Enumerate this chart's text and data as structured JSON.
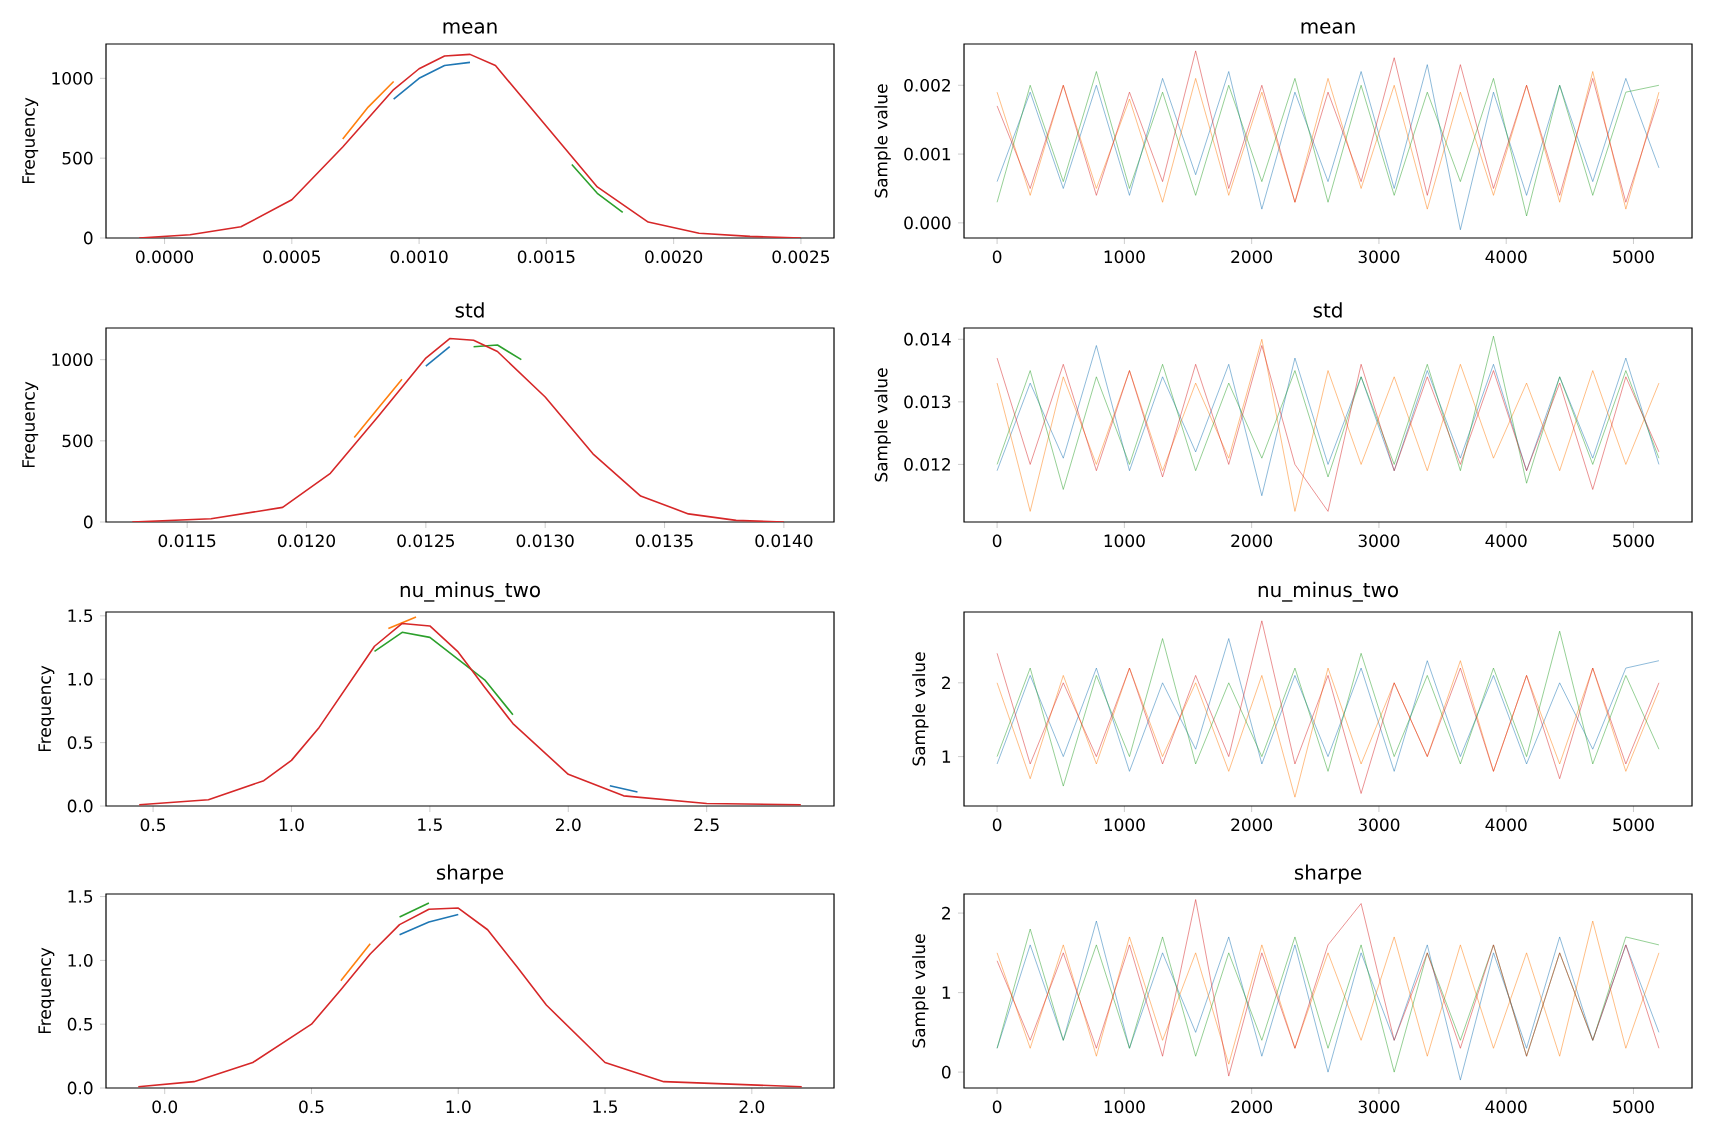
{
  "chart_data": [
    {
      "type": "line",
      "title": "mean",
      "ylabel": "Frequency",
      "xlim": [
        -0.00023,
        0.00263
      ],
      "ylim": [
        0,
        1215
      ],
      "xticks": [
        {
          "value": 0,
          "label": "0.0000"
        },
        {
          "value": 0.0005,
          "label": "0.0005"
        },
        {
          "value": 0.001,
          "label": "0.0010"
        },
        {
          "value": 0.0015,
          "label": "0.0015"
        },
        {
          "value": 0.002,
          "label": "0.0020"
        },
        {
          "value": 0.0025,
          "label": "0.0025"
        }
      ],
      "yticks": [
        0,
        500,
        1000
      ],
      "x": [
        -0.0001,
        0.0001,
        0.0003,
        0.0005,
        0.0007,
        0.0009,
        0.001,
        0.0011,
        0.0012,
        0.0013,
        0.0015,
        0.0017,
        0.0019,
        0.0021,
        0.0023,
        0.0025
      ],
      "series": [
        {
          "color": "#1f77b4",
          "x": [
            0.0009,
            0.001,
            0.0011,
            0.0012
          ],
          "values": [
            870,
            1000,
            1080,
            1100
          ]
        },
        {
          "color": "#ff7f0e",
          "x": [
            0.0007,
            0.0008,
            0.0009
          ],
          "values": [
            620,
            820,
            980
          ]
        },
        {
          "color": "#2ca02c",
          "x": [
            0.0016,
            0.0017,
            0.0018
          ],
          "values": [
            460,
            280,
            160
          ]
        },
        {
          "color": "#d62728",
          "values": [
            0,
            20,
            70,
            240,
            570,
            930,
            1060,
            1140,
            1150,
            1080,
            700,
            320,
            100,
            30,
            10,
            0
          ]
        }
      ]
    },
    {
      "type": "line",
      "title": "mean",
      "ylabel": "Sample value",
      "xlim": [
        -260,
        5460
      ],
      "ylim": [
        -0.00022,
        0.0026
      ],
      "xticks": [
        0,
        1000,
        2000,
        3000,
        4000,
        5000
      ],
      "yticks": [
        {
          "value": 0,
          "label": "0.000"
        },
        {
          "value": 0.001,
          "label": "0.001"
        },
        {
          "value": 0.002,
          "label": "0.002"
        }
      ],
      "x": [
        0,
        260,
        520,
        780,
        1040,
        1300,
        1560,
        1820,
        2080,
        2340,
        2600,
        2860,
        3120,
        3380,
        3640,
        3900,
        4160,
        4420,
        4680,
        4940,
        5200
      ],
      "series": [
        {
          "color": "#1f77b4",
          "values": [
            0.0006,
            0.0019,
            0.0005,
            0.002,
            0.0004,
            0.0021,
            0.0007,
            0.0022,
            0.0002,
            0.0019,
            0.0006,
            0.0022,
            0.0005,
            0.0023,
            -0.0001,
            0.0019,
            0.0004,
            0.002,
            0.0006,
            0.0021,
            0.0008
          ]
        },
        {
          "color": "#ff7f0e",
          "values": [
            0.0019,
            0.0004,
            0.002,
            0.0005,
            0.0018,
            0.0003,
            0.0021,
            0.0004,
            0.0019,
            0.0003,
            0.0021,
            0.0005,
            0.002,
            0.0002,
            0.0019,
            0.0004,
            0.002,
            0.0003,
            0.0022,
            0.0002,
            0.0019
          ]
        },
        {
          "color": "#2ca02c",
          "values": [
            0.0003,
            0.002,
            0.0006,
            0.0022,
            0.0005,
            0.0019,
            0.0004,
            0.002,
            0.0006,
            0.0021,
            0.0003,
            0.002,
            0.0004,
            0.0019,
            0.0006,
            0.0021,
            0.0001,
            0.002,
            0.0004,
            0.0019,
            0.002
          ]
        },
        {
          "color": "#d62728",
          "values": [
            0.0017,
            0.0005,
            0.002,
            0.0004,
            0.0019,
            0.0006,
            0.0025,
            0.0005,
            0.002,
            0.0003,
            0.0019,
            0.0006,
            0.0024,
            0.0004,
            0.0023,
            0.0005,
            0.002,
            0.0004,
            0.0021,
            0.0003,
            0.0018
          ]
        }
      ]
    },
    {
      "type": "line",
      "title": "std",
      "ylabel": "Frequency",
      "xlim": [
        0.01116,
        0.01421
      ],
      "ylim": [
        0,
        1195
      ],
      "xticks": [
        {
          "value": 0.0115,
          "label": "0.0115"
        },
        {
          "value": 0.012,
          "label": "0.0120"
        },
        {
          "value": 0.0125,
          "label": "0.0125"
        },
        {
          "value": 0.013,
          "label": "0.0130"
        },
        {
          "value": 0.0135,
          "label": "0.0135"
        },
        {
          "value": 0.014,
          "label": "0.0140"
        }
      ],
      "yticks": [
        0,
        500,
        1000
      ],
      "x": [
        0.01127,
        0.0116,
        0.0119,
        0.0121,
        0.0123,
        0.0125,
        0.0126,
        0.0127,
        0.0128,
        0.013,
        0.0132,
        0.0134,
        0.0136,
        0.0138,
        0.014
      ],
      "series": [
        {
          "color": "#1f77b4",
          "x": [
            0.0125,
            0.0126
          ],
          "values": [
            960,
            1080
          ]
        },
        {
          "color": "#ff7f0e",
          "x": [
            0.0122,
            0.0123,
            0.0124
          ],
          "values": [
            520,
            700,
            880
          ]
        },
        {
          "color": "#2ca02c",
          "x": [
            0.0127,
            0.0128,
            0.0129
          ],
          "values": [
            1080,
            1090,
            1000
          ]
        },
        {
          "color": "#d62728",
          "values": [
            0,
            20,
            90,
            300,
            650,
            1010,
            1130,
            1120,
            1050,
            770,
            420,
            160,
            50,
            10,
            0
          ]
        }
      ]
    },
    {
      "type": "line",
      "title": "std",
      "ylabel": "Sample value",
      "xlim": [
        -260,
        5460
      ],
      "ylim": [
        0.01108,
        0.01418
      ],
      "xticks": [
        0,
        1000,
        2000,
        3000,
        4000,
        5000
      ],
      "yticks": [
        0.012,
        0.013,
        0.014
      ],
      "x": [
        0,
        260,
        520,
        780,
        1040,
        1300,
        1560,
        1820,
        2080,
        2340,
        2600,
        2860,
        3120,
        3380,
        3640,
        3900,
        4160,
        4420,
        4680,
        4940,
        5200
      ],
      "series": [
        {
          "color": "#1f77b4",
          "values": [
            0.0119,
            0.0133,
            0.0121,
            0.0139,
            0.0119,
            0.0134,
            0.0122,
            0.0136,
            0.0115,
            0.0137,
            0.012,
            0.0134,
            0.0119,
            0.0135,
            0.0121,
            0.0136,
            0.0119,
            0.0134,
            0.0121,
            0.0137,
            0.012
          ]
        },
        {
          "color": "#ff7f0e",
          "values": [
            0.0133,
            0.01125,
            0.0134,
            0.012,
            0.0135,
            0.0119,
            0.0133,
            0.0121,
            0.014,
            0.01125,
            0.0135,
            0.012,
            0.0134,
            0.0119,
            0.0136,
            0.0121,
            0.0133,
            0.0119,
            0.0135,
            0.012,
            0.0133
          ]
        },
        {
          "color": "#2ca02c",
          "values": [
            0.012,
            0.0135,
            0.0116,
            0.0134,
            0.012,
            0.0136,
            0.0119,
            0.0133,
            0.0121,
            0.0135,
            0.0118,
            0.0134,
            0.012,
            0.0136,
            0.0119,
            0.01405,
            0.0117,
            0.0134,
            0.012,
            0.0135,
            0.0121
          ]
        },
        {
          "color": "#d62728",
          "values": [
            0.0137,
            0.012,
            0.0136,
            0.0119,
            0.0135,
            0.0118,
            0.0136,
            0.012,
            0.0139,
            0.012,
            0.01125,
            0.0136,
            0.0119,
            0.0134,
            0.012,
            0.0135,
            0.0119,
            0.0133,
            0.0116,
            0.0134,
            0.0122
          ]
        }
      ]
    },
    {
      "type": "line",
      "title": "nu_minus_two",
      "ylabel": "Frequency",
      "xlim": [
        0.33,
        2.96
      ],
      "ylim": [
        0,
        1.53
      ],
      "xticks": [
        0.5,
        {
          "value": 1,
          "label": "1.0"
        },
        1.5,
        {
          "value": 2,
          "label": "2.0"
        },
        2.5
      ],
      "yticks": [
        {
          "value": 0,
          "label": "0.0"
        },
        0.5,
        {
          "value": 1,
          "label": "1.0"
        },
        1.5
      ],
      "x": [
        0.45,
        0.7,
        0.9,
        1.0,
        1.1,
        1.2,
        1.3,
        1.4,
        1.5,
        1.6,
        1.7,
        1.8,
        2.0,
        2.2,
        2.5,
        2.84
      ],
      "series": [
        {
          "color": "#1f77b4",
          "x": [
            2.15,
            2.25
          ],
          "values": [
            0.16,
            0.11
          ]
        },
        {
          "color": "#ff7f0e",
          "x": [
            1.35,
            1.45
          ],
          "values": [
            1.4,
            1.49
          ]
        },
        {
          "color": "#2ca02c",
          "x": [
            1.3,
            1.4,
            1.5,
            1.7,
            1.8
          ],
          "values": [
            1.22,
            1.37,
            1.33,
            0.99,
            0.72
          ]
        },
        {
          "color": "#d62728",
          "values": [
            0.01,
            0.05,
            0.2,
            0.36,
            0.62,
            0.94,
            1.26,
            1.44,
            1.42,
            1.22,
            0.93,
            0.65,
            0.25,
            0.08,
            0.02,
            0.01
          ]
        }
      ]
    },
    {
      "type": "line",
      "title": "nu_minus_two",
      "ylabel": "Sample value",
      "xlim": [
        -260,
        5460
      ],
      "ylim": [
        0.33,
        2.96
      ],
      "xticks": [
        0,
        1000,
        2000,
        3000,
        4000,
        5000
      ],
      "yticks": [
        1,
        2
      ],
      "x": [
        0,
        260,
        520,
        780,
        1040,
        1300,
        1560,
        1820,
        2080,
        2340,
        2600,
        2860,
        3120,
        3380,
        3640,
        3900,
        4160,
        4420,
        4680,
        4940,
        5200
      ],
      "series": [
        {
          "color": "#1f77b4",
          "values": [
            0.9,
            2.1,
            1.0,
            2.2,
            0.8,
            2.0,
            1.1,
            2.6,
            0.9,
            2.1,
            1.0,
            2.2,
            0.8,
            2.3,
            1.0,
            2.1,
            0.9,
            2.0,
            1.1,
            2.2,
            2.3
          ]
        },
        {
          "color": "#ff7f0e",
          "values": [
            2.0,
            0.7,
            2.1,
            0.9,
            2.2,
            1.0,
            2.0,
            0.8,
            2.1,
            0.45,
            2.2,
            0.9,
            2.0,
            1.0,
            2.3,
            0.8,
            2.1,
            0.9,
            2.2,
            0.8,
            1.9
          ]
        },
        {
          "color": "#2ca02c",
          "values": [
            1.0,
            2.2,
            0.6,
            2.1,
            1.0,
            2.6,
            0.9,
            2.0,
            1.0,
            2.2,
            0.8,
            2.4,
            1.0,
            2.1,
            0.9,
            2.2,
            1.0,
            2.7,
            0.9,
            2.1,
            1.1
          ]
        },
        {
          "color": "#d62728",
          "values": [
            2.4,
            0.9,
            2.0,
            1.0,
            2.2,
            0.9,
            2.1,
            1.0,
            2.84,
            0.9,
            2.1,
            0.5,
            2.0,
            1.0,
            2.2,
            0.8,
            2.1,
            0.7,
            2.2,
            0.9,
            2.0
          ]
        }
      ]
    },
    {
      "type": "line",
      "title": "sharpe",
      "ylabel": "Frequency",
      "xlim": [
        -0.2,
        2.28
      ],
      "ylim": [
        0,
        1.52
      ],
      "xticks": [
        {
          "value": 0,
          "label": "0.0"
        },
        0.5,
        {
          "value": 1,
          "label": "1.0"
        },
        1.5,
        {
          "value": 2,
          "label": "2.0"
        }
      ],
      "yticks": [
        {
          "value": 0,
          "label": "0.0"
        },
        0.5,
        {
          "value": 1,
          "label": "1.0"
        },
        1.5
      ],
      "x": [
        -0.09,
        0.1,
        0.3,
        0.5,
        0.6,
        0.7,
        0.8,
        0.9,
        1.0,
        1.1,
        1.2,
        1.3,
        1.5,
        1.7,
        2.17
      ],
      "series": [
        {
          "color": "#1f77b4",
          "x": [
            0.8,
            0.9,
            1.0
          ],
          "values": [
            1.2,
            1.3,
            1.36
          ]
        },
        {
          "color": "#ff7f0e",
          "x": [
            0.6,
            0.7
          ],
          "values": [
            0.84,
            1.13
          ]
        },
        {
          "color": "#2ca02c",
          "x": [
            0.8,
            0.9
          ],
          "values": [
            1.34,
            1.45
          ]
        },
        {
          "color": "#d62728",
          "values": [
            0.01,
            0.05,
            0.2,
            0.5,
            0.77,
            1.05,
            1.28,
            1.4,
            1.41,
            1.24,
            0.95,
            0.65,
            0.2,
            0.05,
            0.01
          ]
        }
      ]
    },
    {
      "type": "line",
      "title": "sharpe",
      "ylabel": "Sample value",
      "xlim": [
        -260,
        5460
      ],
      "ylim": [
        -0.2,
        2.24
      ],
      "xticks": [
        0,
        1000,
        2000,
        3000,
        4000,
        5000
      ],
      "yticks": [
        0,
        1,
        2
      ],
      "x": [
        0,
        260,
        520,
        780,
        1040,
        1300,
        1560,
        1820,
        2080,
        2340,
        2600,
        2860,
        3120,
        3380,
        3640,
        3900,
        4160,
        4420,
        4680,
        4940,
        5200
      ],
      "series": [
        {
          "color": "#1f77b4",
          "values": [
            0.3,
            1.6,
            0.4,
            1.9,
            0.3,
            1.5,
            0.5,
            1.7,
            0.2,
            1.6,
            0.0,
            1.5,
            0.4,
            1.6,
            -0.1,
            1.5,
            0.3,
            1.7,
            0.4,
            1.6,
            0.5
          ]
        },
        {
          "color": "#ff7f0e",
          "values": [
            1.5,
            0.3,
            1.6,
            0.2,
            1.7,
            0.4,
            1.5,
            0.1,
            1.6,
            0.3,
            1.5,
            0.4,
            1.7,
            0.2,
            1.6,
            0.3,
            1.5,
            0.2,
            1.9,
            0.3,
            1.5
          ]
        },
        {
          "color": "#2ca02c",
          "values": [
            0.3,
            1.8,
            0.4,
            1.6,
            0.3,
            1.7,
            0.2,
            1.5,
            0.4,
            1.7,
            0.3,
            1.6,
            0.0,
            1.5,
            0.4,
            1.6,
            0.2,
            1.5,
            0.4,
            1.7,
            1.6
          ]
        },
        {
          "color": "#d62728",
          "values": [
            1.4,
            0.4,
            1.5,
            0.3,
            1.6,
            0.2,
            2.17,
            -0.05,
            1.5,
            0.3,
            1.6,
            2.12,
            0.4,
            1.5,
            0.3,
            1.6,
            0.2,
            1.5,
            0.4,
            1.6,
            0.3
          ]
        }
      ]
    }
  ]
}
